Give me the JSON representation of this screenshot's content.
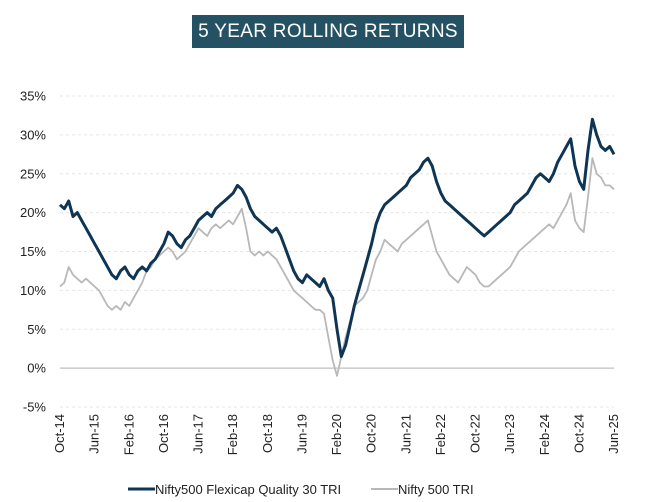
{
  "chart_data": {
    "type": "line",
    "title": "5 YEAR ROLLING RETURNS",
    "xlabel": "",
    "ylabel": "",
    "ylim": [
      -5,
      35
    ],
    "yticks": [
      "-5%",
      "0%",
      "5%",
      "10%",
      "15%",
      "20%",
      "25%",
      "30%",
      "35%"
    ],
    "ytick_values": [
      -5,
      0,
      5,
      10,
      15,
      20,
      25,
      30,
      35
    ],
    "xticks": [
      "Oct-14",
      "Jun-15",
      "Feb-16",
      "Oct-16",
      "Jun-17",
      "Feb-18",
      "Oct-18",
      "Jun-19",
      "Feb-20",
      "Oct-20",
      "Jun-21",
      "Feb-22",
      "Oct-22",
      "Jun-23",
      "Feb-24",
      "Oct-24",
      "Jun-25"
    ],
    "xtick_values": [
      0,
      8,
      16,
      24,
      32,
      40,
      48,
      56,
      64,
      72,
      80,
      88,
      96,
      104,
      112,
      120,
      128
    ],
    "x_unit": "months since Oct-14",
    "grid": true,
    "legend_position": "bottom",
    "series": [
      {
        "name": "Nifty500 Flexicap Quality 30 TRI",
        "color": "#0f3554",
        "x": [
          0,
          1,
          2,
          3,
          4,
          5,
          6,
          7,
          8,
          9,
          10,
          11,
          12,
          13,
          14,
          15,
          16,
          17,
          18,
          19,
          20,
          21,
          22,
          23,
          24,
          25,
          26,
          27,
          28,
          29,
          30,
          31,
          32,
          33,
          34,
          35,
          36,
          37,
          38,
          39,
          40,
          41,
          42,
          43,
          44,
          45,
          46,
          47,
          48,
          49,
          50,
          51,
          52,
          53,
          54,
          55,
          56,
          57,
          58,
          59,
          60,
          61,
          62,
          63,
          64,
          65,
          66,
          67,
          68,
          69,
          70,
          71,
          72,
          73,
          74,
          75,
          76,
          77,
          78,
          79,
          80,
          81,
          82,
          83,
          84,
          85,
          86,
          87,
          88,
          89,
          90,
          91,
          92,
          93,
          94,
          95,
          96,
          97,
          98,
          99,
          100,
          101,
          102,
          103,
          104,
          105,
          106,
          107,
          108,
          109,
          110,
          111,
          112,
          113,
          114,
          115,
          116,
          117,
          118,
          119,
          120,
          121,
          122,
          123,
          124,
          125,
          126,
          127,
          128
        ],
        "values": [
          21,
          20.5,
          21.5,
          19.5,
          20,
          19,
          18,
          17,
          16,
          15,
          14,
          13,
          12,
          11.5,
          12.5,
          13,
          12,
          11.5,
          12.5,
          13,
          12.5,
          13.5,
          14,
          15,
          16,
          17.5,
          17,
          16,
          15.5,
          16.5,
          17,
          18,
          19,
          19.5,
          20,
          19.5,
          20.5,
          21,
          21.5,
          22,
          22.5,
          23.5,
          23,
          22,
          20.5,
          19.5,
          19,
          18.5,
          18,
          17.5,
          18,
          17,
          15.5,
          14,
          12.5,
          11.5,
          11,
          12,
          11.5,
          11,
          10.5,
          11.5,
          10,
          9,
          5,
          1.5,
          3,
          5.5,
          8,
          10,
          12,
          14,
          16,
          18.5,
          20,
          21,
          21.5,
          22,
          22.5,
          23,
          23.5,
          24.5,
          25,
          25.5,
          26.5,
          27,
          26,
          24,
          22.5,
          21.5,
          21,
          20.5,
          20,
          19.5,
          19,
          18.5,
          18,
          17.5,
          17,
          17.5,
          18,
          18.5,
          19,
          19.5,
          20,
          21,
          21.5,
          22,
          22.5,
          23.5,
          24.5,
          25,
          24.5,
          24,
          25,
          26.5,
          27.5,
          28.5,
          29.5,
          26,
          24,
          23,
          28,
          32,
          30,
          28.5,
          28,
          28.5,
          27.5
        ]
      },
      {
        "name": "Nifty 500 TRI",
        "color": "#b8b8b8",
        "x": [
          0,
          1,
          2,
          3,
          4,
          5,
          6,
          7,
          8,
          9,
          10,
          11,
          12,
          13,
          14,
          15,
          16,
          17,
          18,
          19,
          20,
          21,
          22,
          23,
          24,
          25,
          26,
          27,
          28,
          29,
          30,
          31,
          32,
          33,
          34,
          35,
          36,
          37,
          38,
          39,
          40,
          41,
          42,
          43,
          44,
          45,
          46,
          47,
          48,
          49,
          50,
          51,
          52,
          53,
          54,
          55,
          56,
          57,
          58,
          59,
          60,
          61,
          62,
          63,
          64,
          65,
          66,
          67,
          68,
          69,
          70,
          71,
          72,
          73,
          74,
          75,
          76,
          77,
          78,
          79,
          80,
          81,
          82,
          83,
          84,
          85,
          86,
          87,
          88,
          89,
          90,
          91,
          92,
          93,
          94,
          95,
          96,
          97,
          98,
          99,
          100,
          101,
          102,
          103,
          104,
          105,
          106,
          107,
          108,
          109,
          110,
          111,
          112,
          113,
          114,
          115,
          116,
          117,
          118,
          119,
          120,
          121,
          122,
          123,
          124,
          125,
          126,
          127,
          128
        ],
        "values": [
          10.5,
          11,
          13,
          12,
          11.5,
          11,
          11.5,
          11,
          10.5,
          10,
          9,
          8,
          7.5,
          8,
          7.5,
          8.5,
          8,
          9,
          10,
          11,
          12.5,
          13,
          14,
          14.5,
          15,
          15.5,
          15,
          14,
          14.5,
          15,
          16,
          17,
          18,
          17.5,
          17,
          18,
          18.5,
          18,
          18.5,
          19,
          18.5,
          19.5,
          20.5,
          18,
          15,
          14.5,
          15,
          14.5,
          15,
          14.5,
          14,
          13,
          12,
          11,
          10,
          9.5,
          9,
          8.5,
          8,
          7.5,
          7.5,
          7,
          4,
          1,
          -1,
          1.5,
          4,
          6,
          8,
          8.5,
          9,
          10,
          12,
          14,
          15,
          16.5,
          16,
          15.5,
          15,
          16,
          16.5,
          17,
          17.5,
          18,
          18.5,
          19,
          17,
          15,
          14,
          13,
          12,
          11.5,
          11,
          12,
          13,
          12.5,
          12,
          11,
          10.5,
          10.5,
          11,
          11.5,
          12,
          12.5,
          13,
          14,
          15,
          15.5,
          16,
          16.5,
          17,
          17.5,
          18,
          18.5,
          18,
          19,
          20,
          21,
          22.5,
          19,
          18,
          17.5,
          22,
          27,
          25,
          24.5,
          23.5,
          23.5,
          23
        ]
      }
    ]
  }
}
